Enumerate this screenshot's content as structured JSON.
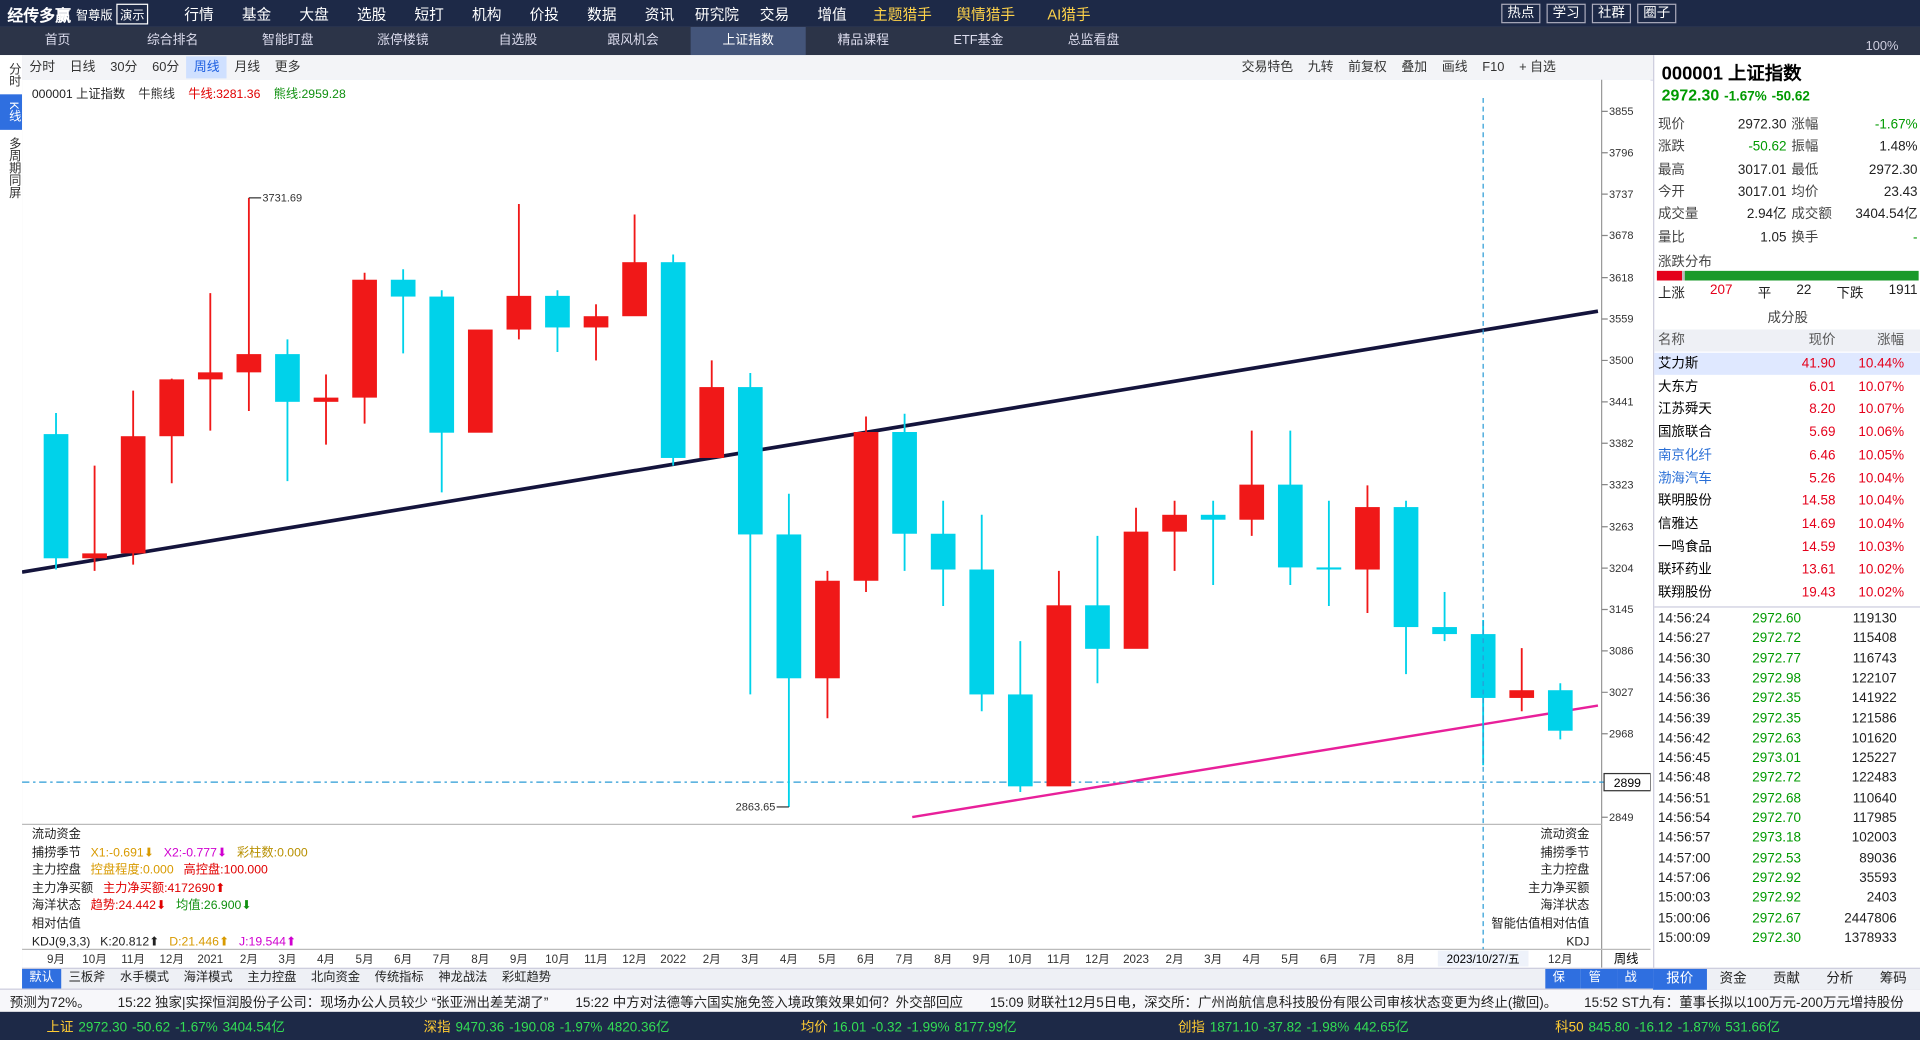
{
  "menu": {
    "logo": "经传多赢",
    "edition": "智尊版",
    "demo": "演示",
    "items": [
      "行情",
      "基金",
      "大盘",
      "选股",
      "短打",
      "机构",
      "价投",
      "数据",
      "资讯",
      "研究院",
      "交易",
      "增值",
      "主题猎手",
      "舆情猎手",
      "AI猎手"
    ],
    "right": [
      "热点",
      "学习",
      "社群",
      "圈子"
    ]
  },
  "tabs": {
    "items": [
      "首页",
      "综合排名",
      "智能盯盘",
      "涨停楼镜",
      "自选股",
      "跟风机会",
      "上证指数",
      "精品课程",
      "ETF基金",
      "总监看盘"
    ],
    "active": 6,
    "zoom": "100%"
  },
  "sidebar": {
    "items": [
      "分时",
      "K线",
      "多周期同屏"
    ],
    "active": 1
  },
  "toolbar": {
    "left": [
      "分时",
      "日线",
      "30分",
      "60分",
      "周线",
      "月线",
      "更多"
    ],
    "active": 4,
    "right": [
      "交易特色",
      "九转",
      "前复权",
      "叠加",
      "画线",
      "F10",
      "+ 自选"
    ]
  },
  "chart_data": {
    "type": "candlestick",
    "title": "000001 上证指数",
    "legend_label": "牛熊线",
    "bull_line": "牛线:3281.36",
    "bear_line": "熊线:2959.28",
    "ylim": [
      2844,
      3874
    ],
    "yticks": [
      3855,
      3796,
      3737,
      3678,
      3618,
      3559,
      3500,
      3441,
      3382,
      3323,
      3263,
      3204,
      3145,
      3086,
      3027,
      2968,
      2849
    ],
    "ref_line": 2899,
    "up_color": "#f01818",
    "down_color": "#00d2ea",
    "x_labels": [
      "9月",
      "10月",
      "11月",
      "12月",
      "2021",
      "2月",
      "3月",
      "4月",
      "5月",
      "6月",
      "7月",
      "8月",
      "9月",
      "10月",
      "11月",
      "12月",
      "2022",
      "2月",
      "3月",
      "4月",
      "5月",
      "6月",
      "7月",
      "8月",
      "9月",
      "10月",
      "11月",
      "12月",
      "2023",
      "2月",
      "3月",
      "4月",
      "5月",
      "6月",
      "7月",
      "8月",
      "9",
      null,
      null,
      "12月"
    ],
    "cursor_label": "2023/10/27/五",
    "period_label": "周线",
    "annotations": {
      "high": "3731.69",
      "low": "2863.65"
    },
    "candles": {
      "open": [
        3395,
        3218,
        3225,
        3392,
        3473,
        3483,
        3509,
        3441,
        3447,
        3615,
        3591,
        3397,
        3544,
        3592,
        3547,
        3563,
        3640,
        3361,
        3462,
        3252,
        3047,
        3186,
        3398,
        3253,
        3202,
        3024,
        2893,
        3151,
        3089,
        3256,
        3280,
        3273,
        3323,
        3205,
        3202,
        3291,
        3120,
        3110,
        3019,
        3030
      ],
      "high": [
        3425,
        3350,
        3457,
        3474,
        3596,
        3731.69,
        3530,
        3480,
        3625,
        3630,
        3600,
        3540,
        3723,
        3600,
        3580,
        3708,
        3651,
        3500,
        3482,
        3310,
        3200,
        3420,
        3424,
        3300,
        3280,
        3100,
        3200,
        3250,
        3290,
        3300,
        3300,
        3400,
        3400,
        3300,
        3322,
        3300,
        3170,
        3130,
        3090,
        3040
      ],
      "low": [
        3202,
        3200,
        3209,
        3325,
        3400,
        3428,
        3328,
        3380,
        3410,
        3510,
        3312,
        3400,
        3530,
        3512,
        3500,
        3580,
        3350,
        3370,
        3024,
        2863.65,
        2990,
        3170,
        3200,
        3150,
        3000,
        2885,
        2900,
        3040,
        3090,
        3200,
        3180,
        3250,
        3180,
        3150,
        3140,
        3053,
        3100,
        2923,
        3000,
        2960
      ],
      "close": [
        3218,
        3225,
        3392,
        3473,
        3483,
        3509,
        3441,
        3447,
        3615,
        3591,
        3397,
        3544,
        3592,
        3547,
        3563,
        3640,
        3361,
        3462,
        3252,
        3047,
        3186,
        3398,
        3253,
        3202,
        3024,
        2893,
        3151,
        3089,
        3256,
        3280,
        3273,
        3323,
        3205,
        3202,
        3291,
        3120,
        3110,
        3019,
        3030,
        2972.3
      ]
    }
  },
  "indicators": {
    "rows": [
      {
        "label": "流动资金",
        "parts": []
      },
      {
        "label": "捕捞季节",
        "parts": [
          {
            "text": "X1:-0.691⬇",
            "color": "#d89a00"
          },
          {
            "text": "X2:-0.777⬇",
            "color": "#d000d0"
          },
          {
            "text": "彩柱数:0.000",
            "color": "#b89000"
          }
        ]
      },
      {
        "label": "主力控盘",
        "parts": [
          {
            "text": "控盘程度:0.000",
            "color": "#d89a00"
          },
          {
            "text": "高控盘:100.000",
            "color": "#e00000"
          }
        ]
      },
      {
        "label": "主力净买额",
        "parts": [
          {
            "text": "主力净买额:4172690⬆",
            "color": "#e00000"
          }
        ]
      },
      {
        "label": "海洋状态",
        "parts": [
          {
            "text": "趋势:24.442⬇",
            "color": "#e00000"
          },
          {
            "text": "均值:26.900⬇",
            "color": "#109010"
          }
        ]
      },
      {
        "label": "相对估值",
        "parts": []
      },
      {
        "label": "KDJ(9,3,3)",
        "parts": [
          {
            "text": "K:20.812⬆",
            "color": "#222"
          },
          {
            "text": "D:21.446⬆",
            "color": "#d89a00"
          },
          {
            "text": "J:19.544⬆",
            "color": "#d000d0"
          }
        ]
      }
    ],
    "right_labels": [
      "流动资金",
      "捕捞季节",
      "主力控盘",
      "主力净买额",
      "海洋状态",
      "智能估值相对估值",
      "KDJ"
    ]
  },
  "bottom_tabs": {
    "left": [
      "默认",
      "三板斧",
      "水手模式",
      "海洋模式",
      "主力控盘",
      "北向资金",
      "传统指标",
      "神龙战法",
      "彩虹趋势"
    ],
    "right": [
      "保存",
      "管理",
      "战法"
    ]
  },
  "news": [
    "预测为72%。",
    "15:22 独家|实探恒润股份子公司：现场办公人员较少 “张亚洲出差芜湖了”",
    "15:22 中方对法德等六国实施免签入境政策效果如何？外交部回应",
    "15:09 财联社12月5日电，深交所：广州尚航信息科技股份有限公司审核状态变更为终止(撤回)。",
    "15:52 ST九有：董事长拟以100万元-200万元增持股份"
  ],
  "indices": [
    [
      "上证",
      "2972.30",
      "-50.62",
      "-1.67%",
      "3404.54亿"
    ],
    [
      "深指",
      "9470.36",
      "-190.08",
      "-1.97%",
      "4820.36亿"
    ],
    [
      "均价",
      "16.01",
      "-0.32",
      "-1.99%",
      "8177.99亿"
    ],
    [
      "创指",
      "1871.10",
      "-37.82",
      "-1.98%",
      "442.65亿"
    ],
    [
      "科50",
      "845.80",
      "-16.12",
      "-1.87%",
      "531.66亿"
    ]
  ],
  "quote": {
    "code": "000001 上证指数",
    "price": "2972.30",
    "pct": "-1.67%",
    "chg": "-50.62",
    "rows": [
      [
        "现价",
        "2972.30",
        "涨幅",
        "-1.67%"
      ],
      [
        "涨跌",
        "-50.62",
        "振幅",
        "1.48%"
      ],
      [
        "最高",
        "3017.01",
        "最低",
        "2972.30"
      ],
      [
        "今开",
        "3017.01",
        "均价",
        "23.43"
      ],
      [
        "成交量",
        "2.94亿",
        "成交额",
        "3404.54亿"
      ],
      [
        "量比",
        "1.05",
        "换手",
        "-"
      ]
    ],
    "dist_title": "涨跌分布",
    "dist": {
      "up_label": "上涨",
      "up": 207,
      "flat_label": "平",
      "flat": 22,
      "down_label": "下跌",
      "down": 1911
    },
    "cons_title": "成分股",
    "cons_header": [
      "名称",
      "现价",
      "涨幅"
    ],
    "cons": [
      [
        "艾力斯",
        "41.90",
        "10.44%"
      ],
      [
        "大东方",
        "6.01",
        "10.07%"
      ],
      [
        "江苏舜天",
        "8.20",
        "10.07%"
      ],
      [
        "国旅联合",
        "5.69",
        "10.06%"
      ],
      [
        "南京化纤",
        "6.46",
        "10.05%"
      ],
      [
        "渤海汽车",
        "5.26",
        "10.04%"
      ],
      [
        "联明股份",
        "14.58",
        "10.04%"
      ],
      [
        "信雅达",
        "14.69",
        "10.04%"
      ],
      [
        "一鸣食品",
        "14.59",
        "10.03%"
      ],
      [
        "联环药业",
        "13.61",
        "10.02%"
      ],
      [
        "联翔股份",
        "19.43",
        "10.02%"
      ]
    ],
    "ticks": [
      [
        "14:56:24",
        "2972.60",
        "119130"
      ],
      [
        "14:56:27",
        "2972.72",
        "115408"
      ],
      [
        "14:56:30",
        "2972.77",
        "116743"
      ],
      [
        "14:56:33",
        "2972.98",
        "122107"
      ],
      [
        "14:56:36",
        "2972.35",
        "141922"
      ],
      [
        "14:56:39",
        "2972.35",
        "121586"
      ],
      [
        "14:56:42",
        "2972.63",
        "101620"
      ],
      [
        "14:56:45",
        "2973.01",
        "125227"
      ],
      [
        "14:56:48",
        "2972.72",
        "122483"
      ],
      [
        "14:56:51",
        "2972.68",
        "110640"
      ],
      [
        "14:56:54",
        "2972.70",
        "117985"
      ],
      [
        "14:56:57",
        "2973.18",
        "102003"
      ],
      [
        "14:57:00",
        "2972.53",
        "89036"
      ],
      [
        "14:57:06",
        "2972.92",
        "35593"
      ],
      [
        "15:00:03",
        "2972.92",
        "2403"
      ],
      [
        "15:00:06",
        "2972.67",
        "2447806"
      ],
      [
        "15:00:09",
        "2972.30",
        "1378933"
      ]
    ],
    "tabs": [
      "报价",
      "资金",
      "贡献",
      "分析",
      "筹码"
    ]
  }
}
